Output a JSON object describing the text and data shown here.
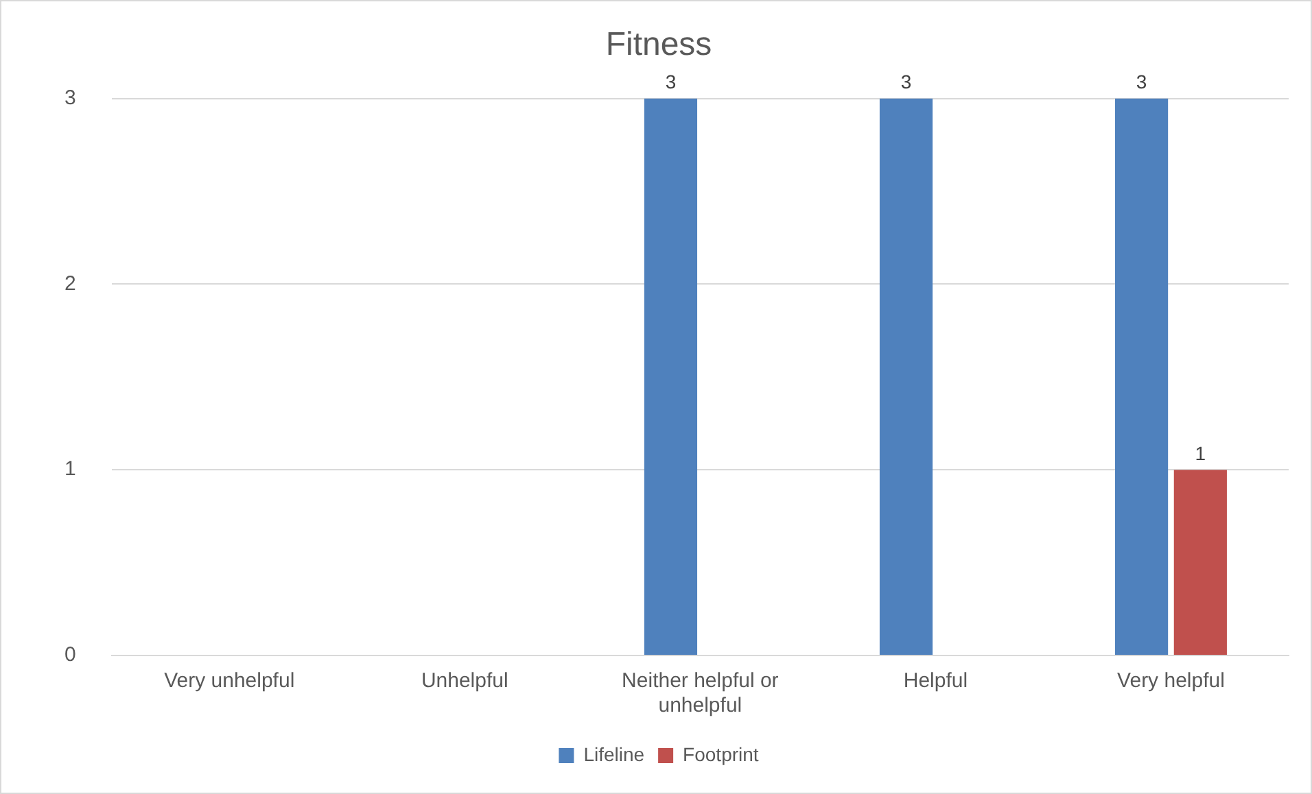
{
  "chart_data": {
    "type": "bar",
    "title": "Fitness",
    "categories": [
      "Very unhelpful",
      "Unhelpful",
      "Neither helpful or unhelpful",
      "Helpful",
      "Very helpful"
    ],
    "series": [
      {
        "name": "Lifeline",
        "color": "#4f81bd",
        "values": [
          0,
          0,
          3,
          3,
          3
        ],
        "value_labels": [
          null,
          null,
          "3",
          "3",
          "3"
        ]
      },
      {
        "name": "Footprint",
        "color": "#c0504d",
        "values": [
          0,
          0,
          0,
          0,
          1
        ],
        "value_labels": [
          null,
          null,
          null,
          null,
          "1"
        ]
      }
    ],
    "ylim": [
      0,
      3
    ],
    "yticks": [
      0,
      1,
      2,
      3
    ],
    "grid": "y",
    "legend": "bottom"
  }
}
